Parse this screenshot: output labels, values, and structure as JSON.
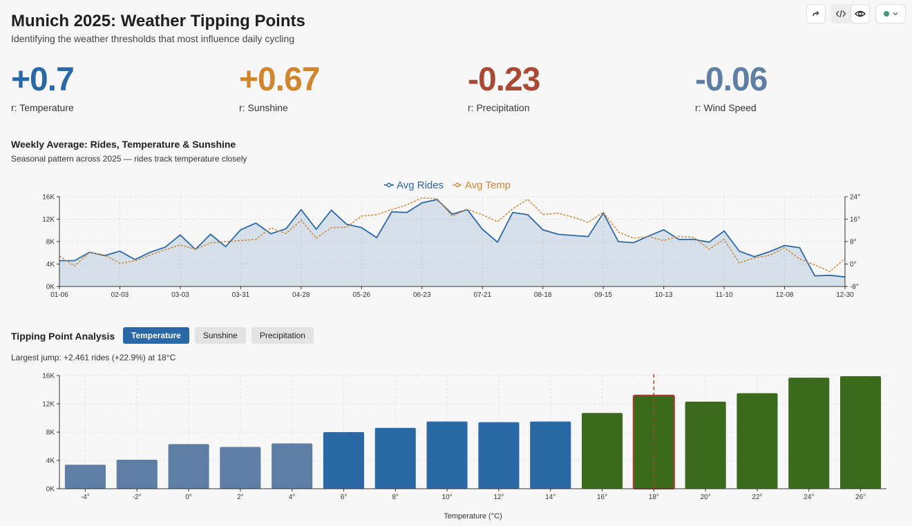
{
  "header": {
    "title": "Munich 2025: Weather Tipping Points",
    "subtitle": "Identifying the weather thresholds that most influence daily cycling"
  },
  "toolbar": {
    "share_icon": "share-arrow-icon",
    "code_icon": "code-icon",
    "preview_icon": "eye-icon",
    "status_color": "#3a9a7a"
  },
  "kpis": [
    {
      "value": "+0.7",
      "label": "r: Temperature",
      "color": "#2b68a6"
    },
    {
      "value": "+0.67",
      "label": "r: Sunshine",
      "color": "#d0862f"
    },
    {
      "value": "-0.23",
      "label": "r: Precipitation",
      "color": "#a84a33"
    },
    {
      "value": "-0.06",
      "label": "r: Wind Speed",
      "color": "#5e7fa3"
    }
  ],
  "weekly": {
    "title": "Weekly Average: Rides, Temperature & Sunshine",
    "subtitle": "Seasonal pattern across 2025 — rides track temperature closely"
  },
  "tipping": {
    "title": "Tipping Point Analysis",
    "tabs": [
      "Temperature",
      "Sunshine",
      "Precipitation"
    ],
    "active_tab": "Temperature",
    "summary": "Largest jump: +2.461 rides (+22.9%) at 18°C"
  },
  "chart_data": [
    {
      "type": "line",
      "legend": [
        "Avg Rides",
        "Avg Temp"
      ],
      "legend_position": "top-center",
      "x_ticks": [
        "01-06",
        "02-03",
        "03-03",
        "03-31",
        "04-28",
        "05-26",
        "06-23",
        "07-21",
        "08-18",
        "09-15",
        "10-13",
        "11-10",
        "12-08",
        "12-30"
      ],
      "y_ticks": [
        "0K",
        "4K",
        "8K",
        "12K",
        "16K"
      ],
      "y2_ticks": [
        "-8°",
        "0°",
        "8°",
        "16°",
        "24°"
      ],
      "ylim": [
        0,
        16000
      ],
      "y2lim": [
        -8,
        24
      ],
      "grid": true,
      "series": [
        {
          "name": "Avg Rides",
          "color": "#2b68a6",
          "area": true,
          "values": [
            4600,
            4600,
            6100,
            5500,
            6300,
            4800,
            6100,
            7000,
            9200,
            6600,
            9300,
            7100,
            10100,
            11300,
            9400,
            10300,
            13700,
            10200,
            13600,
            11100,
            10500,
            8700,
            13300,
            13200,
            14900,
            15500,
            12900,
            13700,
            10200,
            7900,
            13200,
            12800,
            10100,
            9300,
            9100,
            8900,
            13100,
            8000,
            7800,
            9000,
            10100,
            8400,
            8400,
            7900,
            9900,
            6300,
            5300,
            6200,
            7300,
            6900,
            1900,
            2000,
            1700
          ]
        },
        {
          "name": "Avg Temp",
          "color": "#d0862f",
          "dashed": true,
          "values": [
            2.8,
            -0.7,
            4.1,
            3.2,
            0.3,
            1.1,
            3.2,
            5.1,
            6.8,
            5.3,
            7.5,
            8.0,
            8.4,
            8.8,
            12.9,
            10.9,
            15.6,
            9.2,
            13.0,
            13.1,
            17.1,
            17.6,
            19.4,
            21.1,
            23.6,
            23.3,
            17.1,
            19.5,
            17.6,
            15.1,
            19.7,
            23.1,
            17.7,
            18.1,
            16.8,
            14.8,
            18.5,
            11.4,
            9.2,
            9.8,
            8.4,
            9.9,
            9.5,
            5.3,
            8.8,
            0.4,
            2.2,
            3.1,
            5.8,
            1.8,
            -0.3,
            -2.7,
            2.0
          ]
        }
      ]
    },
    {
      "type": "bar",
      "xlabel": "Temperature (°C)",
      "categories": [
        "-4°",
        "-2°",
        "0°",
        "2°",
        "4°",
        "6°",
        "8°",
        "10°",
        "12°",
        "14°",
        "16°",
        "18°",
        "20°",
        "22°",
        "24°",
        "26°"
      ],
      "values": [
        3400,
        4100,
        6300,
        5900,
        6400,
        8000,
        8600,
        9500,
        9400,
        9500,
        10700,
        13200,
        12300,
        13500,
        15700,
        15900
      ],
      "colors": [
        "#5e7fa3",
        "#5e7fa3",
        "#5e7fa3",
        "#5e7fa3",
        "#5e7fa3",
        "#2b68a6",
        "#2b68a6",
        "#2b68a6",
        "#2b68a6",
        "#2b68a6",
        "#3a6b1a",
        "#3a6b1a",
        "#3a6b1a",
        "#3a6b1a",
        "#3a6b1a",
        "#3a6b1a"
      ],
      "highlight": "18°",
      "highlight_color": "#b03a2e",
      "y_ticks": [
        "0K",
        "4K",
        "8K",
        "12K",
        "16K"
      ],
      "ylim": [
        0,
        16000
      ],
      "grid": true
    }
  ]
}
